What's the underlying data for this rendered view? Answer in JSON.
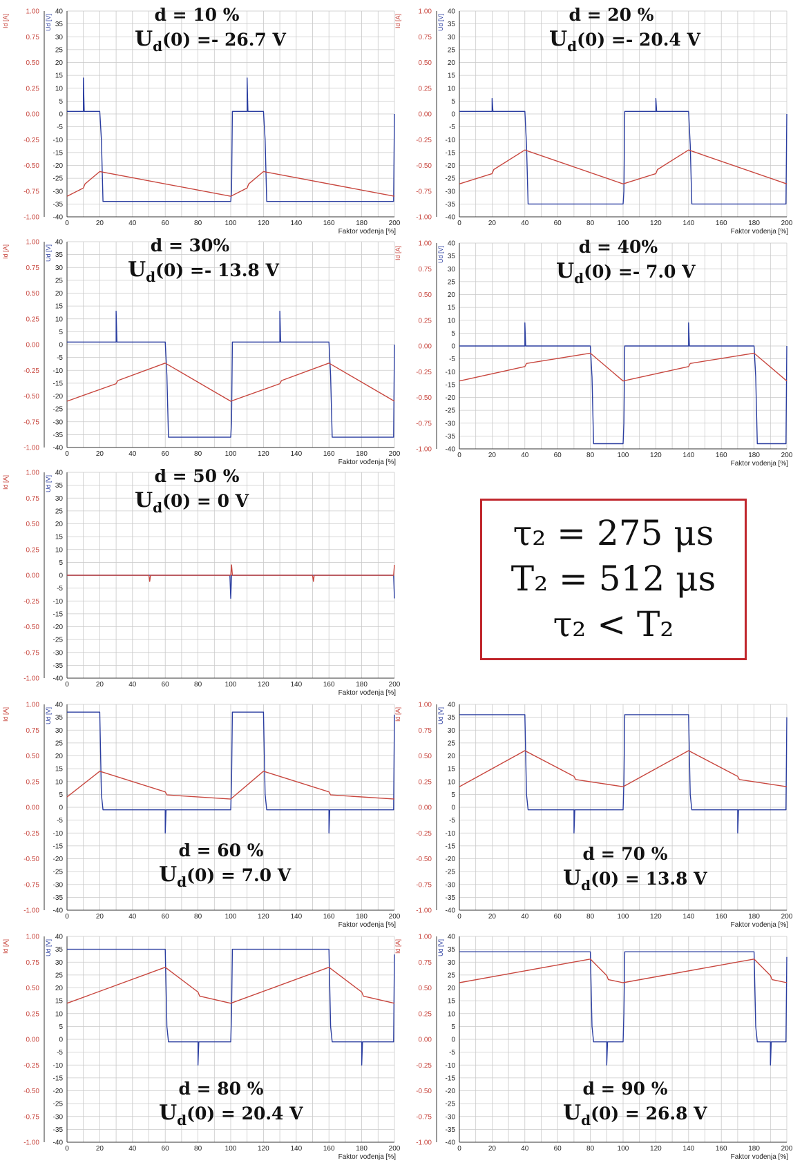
{
  "colors": {
    "voltage": "#2b3ea0",
    "current": "#c8473f",
    "grid": "#c9c9c9",
    "axis": "#333333",
    "box": "#c0262c"
  },
  "info_box": {
    "line1": "τ₂ = 275 μs",
    "line2": "T₂ = 512 μs",
    "line3": "τ₂ < T₂"
  },
  "chart_data": [
    {
      "type": "line",
      "duty": "d = 10 %",
      "ud_label": "Ud(0) =- 26.7 V",
      "xlabel": "Faktor vođenja [%]",
      "ylabel_left": "Id [A]",
      "ylabel_right": "Ud [V]",
      "xlim": [
        0,
        200
      ],
      "ylim_left": [
        -1,
        1
      ],
      "ylim_right": [
        -40,
        40
      ],
      "grid": true,
      "series": [
        {
          "axis": "Ud",
          "color": "#2b3ea0",
          "x": [
            0,
            10,
            10,
            10.5,
            11,
            20,
            21,
            22,
            100,
            100.5,
            101,
            110,
            110,
            110.5,
            111,
            120,
            121,
            122,
            199.5,
            200
          ],
          "y": [
            1,
            1,
            14,
            1,
            1,
            1,
            -10,
            -34,
            -34,
            -30,
            1,
            1,
            14,
            1,
            1,
            1,
            -10,
            -34,
            -34,
            0
          ]
        },
        {
          "axis": "Id",
          "color": "#c8473f",
          "x": [
            0,
            10,
            11,
            20,
            100,
            110,
            111,
            120,
            200
          ],
          "y": [
            -0.8,
            -0.72,
            -0.68,
            -0.56,
            -0.8,
            -0.72,
            -0.68,
            -0.56,
            -0.8
          ]
        }
      ]
    },
    {
      "type": "line",
      "duty": "d = 20 %",
      "ud_label": "Ud(0) =- 20.4 V",
      "xlabel": "Faktor vođenja [%]",
      "ylabel_left": "Id [A]",
      "ylabel_right": "Ud [V]",
      "xlim": [
        0,
        200
      ],
      "ylim_left": [
        -1,
        1
      ],
      "ylim_right": [
        -40,
        40
      ],
      "grid": true,
      "series": [
        {
          "axis": "Ud",
          "color": "#2b3ea0",
          "x": [
            0,
            20,
            20,
            20.5,
            21,
            40,
            41,
            42,
            100,
            100.5,
            101,
            120,
            120,
            120.5,
            121,
            140,
            141,
            142,
            199.5,
            200
          ],
          "y": [
            1,
            1,
            6,
            1,
            1,
            1,
            -12,
            -35,
            -35,
            -30,
            1,
            1,
            6,
            1,
            1,
            1,
            -12,
            -35,
            -35,
            0
          ]
        },
        {
          "axis": "Id",
          "color": "#c8473f",
          "x": [
            0,
            20,
            21,
            40,
            100,
            120,
            121,
            140,
            200
          ],
          "y": [
            -0.68,
            -0.58,
            -0.54,
            -0.35,
            -0.68,
            -0.58,
            -0.54,
            -0.35,
            -0.68
          ]
        }
      ]
    },
    {
      "type": "line",
      "duty": "d =  30%",
      "ud_label": "Ud(0) =- 13.8 V",
      "xlabel": "Faktor vođenja [%]",
      "ylabel_left": "Id [A]",
      "ylabel_right": "Ud [V]",
      "xlim": [
        0,
        200
      ],
      "ylim_left": [
        -1,
        1
      ],
      "ylim_right": [
        -40,
        40
      ],
      "grid": true,
      "series": [
        {
          "axis": "Ud",
          "color": "#2b3ea0",
          "x": [
            0,
            30,
            30,
            30.5,
            31,
            60,
            61,
            62,
            100,
            100.5,
            101,
            130,
            130,
            130.5,
            131,
            160,
            161,
            162,
            199.5,
            200
          ],
          "y": [
            1,
            1,
            13,
            1,
            1,
            1,
            -12,
            -36,
            -36,
            -30,
            1,
            1,
            13,
            1,
            1,
            1,
            -12,
            -36,
            -36,
            0
          ]
        },
        {
          "axis": "Id",
          "color": "#c8473f",
          "x": [
            0,
            30,
            31,
            60,
            100,
            130,
            131,
            160,
            200
          ],
          "y": [
            -0.55,
            -0.38,
            -0.35,
            -0.18,
            -0.55,
            -0.38,
            -0.35,
            -0.18,
            -0.55
          ]
        }
      ]
    },
    {
      "type": "line",
      "duty": "d = 40%",
      "ud_label": "Ud(0) =- 7.0 V",
      "xlabel": "Faktor vođenja [%]",
      "ylabel_left": "Id [A]",
      "ylabel_right": "Ud [V]",
      "xlim": [
        0,
        200
      ],
      "ylim_left": [
        -1,
        1
      ],
      "ylim_right": [
        -40,
        40
      ],
      "grid": true,
      "series": [
        {
          "axis": "Ud",
          "color": "#2b3ea0",
          "x": [
            0,
            40,
            40,
            40.5,
            41,
            80,
            81,
            82,
            100,
            100.5,
            101,
            140,
            140,
            140.5,
            141,
            180,
            181,
            182,
            199.5,
            200
          ],
          "y": [
            0,
            0,
            9,
            0,
            0,
            0,
            -12,
            -38,
            -38,
            -30,
            0,
            0,
            9,
            0,
            0,
            0,
            -12,
            -38,
            -38,
            0
          ]
        },
        {
          "axis": "Id",
          "color": "#c8473f",
          "x": [
            0,
            40,
            41,
            80,
            100,
            140,
            141,
            180,
            200
          ],
          "y": [
            -0.34,
            -0.2,
            -0.17,
            -0.07,
            -0.34,
            -0.2,
            -0.17,
            -0.07,
            -0.34
          ]
        }
      ]
    },
    {
      "type": "line",
      "duty": "d =  50 %",
      "ud_label": "Ud(0) =  0  V",
      "xlabel": "Faktor vođenja [%]",
      "ylabel_left": "Id [A]",
      "ylabel_right": "Ud [V]",
      "xlim": [
        0,
        200
      ],
      "ylim_left": [
        -1,
        1
      ],
      "ylim_right": [
        -40,
        40
      ],
      "grid": true,
      "series": [
        {
          "axis": "Ud",
          "color": "#2b3ea0",
          "x": [
            0,
            99.5,
            100,
            100.5,
            101,
            199.5,
            200
          ],
          "y": [
            0,
            0,
            -9,
            0,
            0,
            0,
            -9
          ]
        },
        {
          "axis": "Id",
          "color": "#c8473f",
          "x": [
            0,
            50,
            50.5,
            51,
            100,
            100.5,
            101,
            150,
            150.5,
            151,
            199.5,
            200
          ],
          "y": [
            0,
            0,
            -0.06,
            0,
            0,
            0.1,
            0,
            0,
            -0.06,
            0,
            0,
            0.1
          ]
        }
      ]
    },
    {
      "type": "line",
      "duty": "d = 60 %",
      "ud_label": "Ud(0) = 7.0 V",
      "xlabel": "Faktor vođenja [%]",
      "ylabel_left": "Id [A]",
      "ylabel_right": "Ud [V]",
      "xlim": [
        0,
        200
      ],
      "ylim_left": [
        -1,
        1
      ],
      "ylim_right": [
        -40,
        40
      ],
      "grid": true,
      "series": [
        {
          "axis": "Ud",
          "color": "#2b3ea0",
          "x": [
            0,
            20,
            21,
            22,
            60,
            60,
            60.5,
            61,
            100,
            100.5,
            101,
            120,
            121,
            122,
            160,
            160,
            160.5,
            161,
            199.5,
            200
          ],
          "y": [
            37,
            37,
            5,
            -1,
            -1,
            -10,
            -1,
            -1,
            -1,
            10,
            37,
            37,
            5,
            -1,
            -1,
            -10,
            -1,
            -1,
            -1,
            36
          ]
        },
        {
          "axis": "Id",
          "color": "#c8473f",
          "x": [
            0,
            20,
            60,
            61,
            100,
            120,
            160,
            161,
            200
          ],
          "y": [
            0.1,
            0.35,
            0.15,
            0.12,
            0.08,
            0.35,
            0.15,
            0.12,
            0.08
          ]
        }
      ]
    },
    {
      "type": "line",
      "duty": "d = 70 %",
      "ud_label": "Ud(0) = 13.8 V",
      "xlabel": "Faktor vođenja [%]",
      "ylabel_left": "Id [A]",
      "ylabel_right": "Ud [V]",
      "xlim": [
        0,
        200
      ],
      "ylim_left": [
        -1,
        1
      ],
      "ylim_right": [
        -40,
        40
      ],
      "grid": true,
      "series": [
        {
          "axis": "Ud",
          "color": "#2b3ea0",
          "x": [
            0,
            40,
            41,
            42,
            70,
            70,
            70.5,
            71,
            100,
            100.5,
            101,
            140,
            141,
            142,
            170,
            170,
            170.5,
            171,
            199.5,
            200
          ],
          "y": [
            36,
            36,
            5,
            -1,
            -1,
            -10,
            -1,
            -1,
            -1,
            10,
            36,
            36,
            5,
            -1,
            -1,
            -10,
            -1,
            -1,
            -1,
            35
          ]
        },
        {
          "axis": "Id",
          "color": "#c8473f",
          "x": [
            0,
            40,
            70,
            71,
            100,
            140,
            170,
            171,
            200
          ],
          "y": [
            0.2,
            0.55,
            0.3,
            0.27,
            0.2,
            0.55,
            0.3,
            0.27,
            0.2
          ]
        }
      ]
    },
    {
      "type": "line",
      "duty": "d = 80 %",
      "ud_label": "Ud(0) = 20.4 V",
      "xlabel": "Faktor vođenja [%]",
      "ylabel_left": "Id [A]",
      "ylabel_right": "Ud [V]",
      "xlim": [
        0,
        200
      ],
      "ylim_left": [
        -1,
        1
      ],
      "ylim_right": [
        -40,
        40
      ],
      "grid": true,
      "series": [
        {
          "axis": "Ud",
          "color": "#2b3ea0",
          "x": [
            0,
            60,
            61,
            62,
            80,
            80,
            80.5,
            81,
            100,
            100.5,
            101,
            160,
            161,
            162,
            180,
            180,
            180.5,
            181,
            199.5,
            200
          ],
          "y": [
            35,
            35,
            5,
            -1,
            -1,
            -10,
            -1,
            -1,
            -1,
            10,
            35,
            35,
            5,
            -1,
            -1,
            -10,
            -1,
            -1,
            -1,
            33
          ]
        },
        {
          "axis": "Id",
          "color": "#c8473f",
          "x": [
            0,
            60,
            80,
            81,
            100,
            160,
            180,
            181,
            200
          ],
          "y": [
            0.35,
            0.7,
            0.46,
            0.42,
            0.35,
            0.7,
            0.46,
            0.42,
            0.35
          ]
        }
      ]
    },
    {
      "type": "line",
      "duty": "d = 90 %",
      "ud_label": "Ud(0) = 26.8 V",
      "xlabel": "Faktor vođenja [%]",
      "ylabel_left": "Id [A]",
      "ylabel_right": "Ud [V]",
      "xlim": [
        0,
        200
      ],
      "ylim_left": [
        -1,
        1
      ],
      "ylim_right": [
        -40,
        40
      ],
      "grid": true,
      "series": [
        {
          "axis": "Ud",
          "color": "#2b3ea0",
          "x": [
            0,
            80,
            81,
            82,
            90,
            90,
            90.5,
            91,
            100,
            100.5,
            101,
            180,
            181,
            182,
            190,
            190,
            190.5,
            191,
            199.5,
            200
          ],
          "y": [
            34,
            34,
            5,
            -1,
            -1,
            -10,
            -1,
            -1,
            -1,
            10,
            34,
            34,
            5,
            -1,
            -1,
            -10,
            -1,
            -1,
            -1,
            32
          ]
        },
        {
          "axis": "Id",
          "color": "#c8473f",
          "x": [
            0,
            80,
            90,
            91,
            100,
            180,
            190,
            191,
            200
          ],
          "y": [
            0.55,
            0.78,
            0.62,
            0.58,
            0.55,
            0.78,
            0.62,
            0.58,
            0.55
          ]
        }
      ]
    }
  ]
}
